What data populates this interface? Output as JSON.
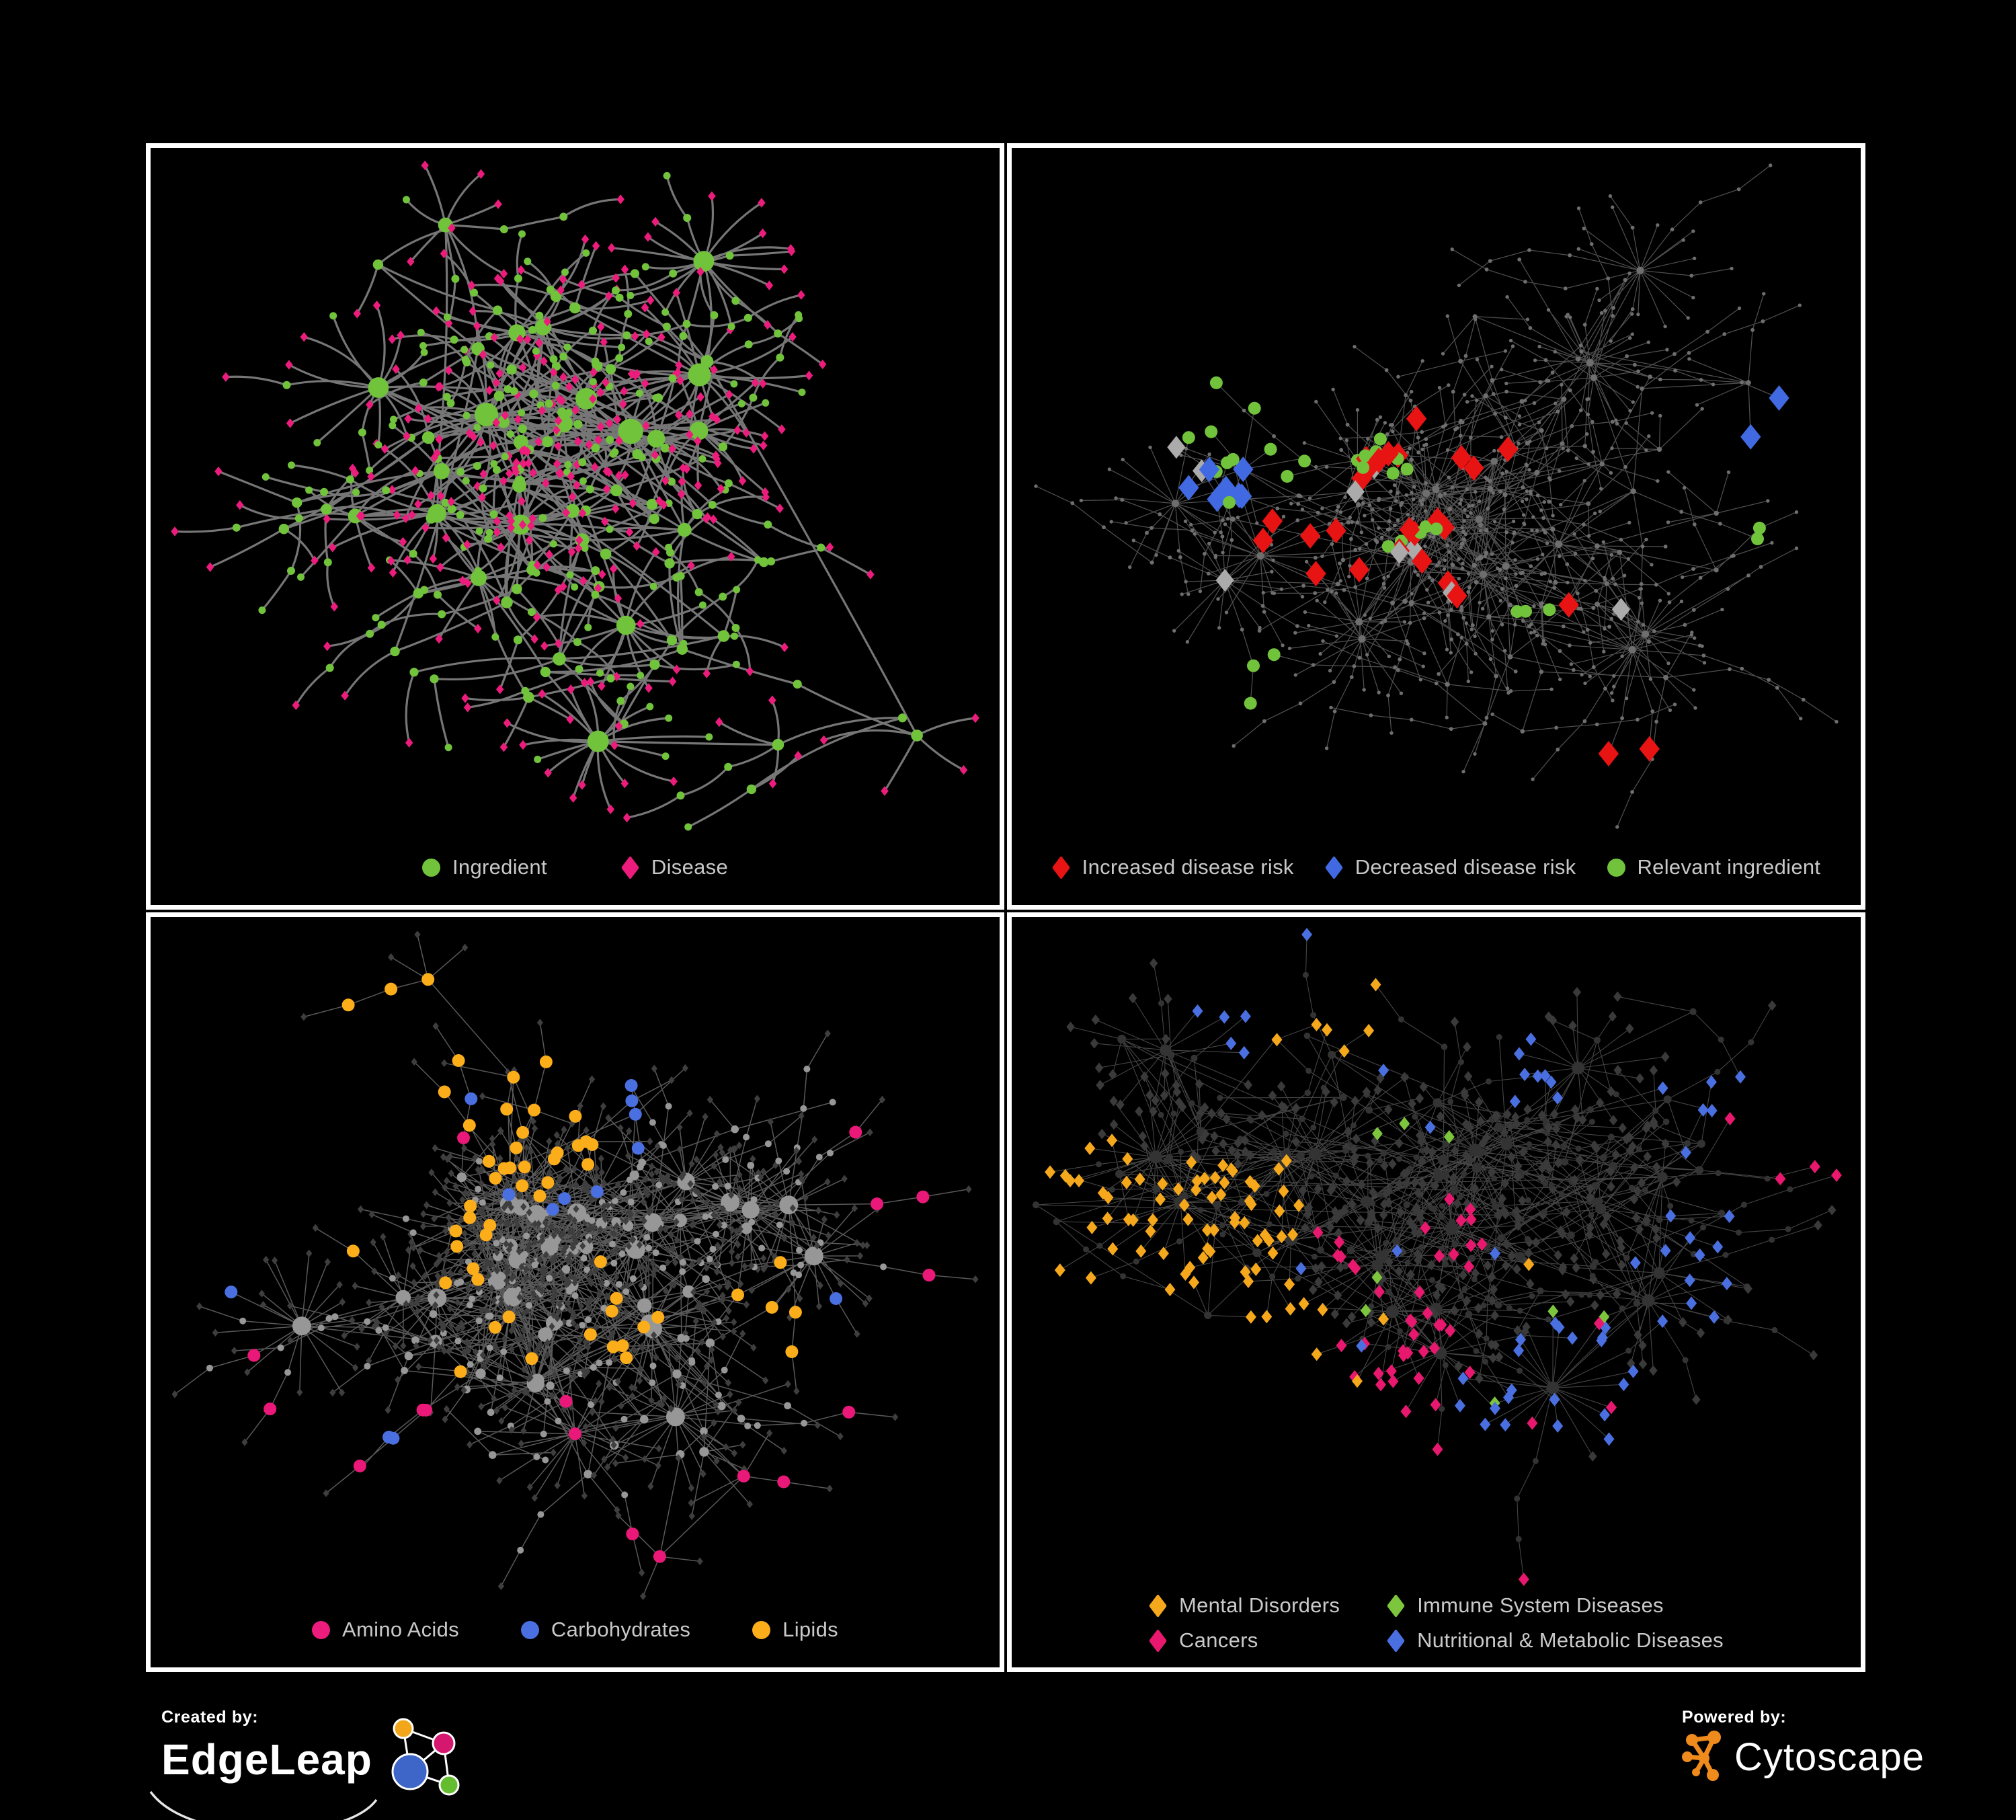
{
  "figure": {
    "background": "#000000",
    "panel_border": "#FFFFFF",
    "legend_text_color": "#C9C9C9"
  },
  "panels": [
    {
      "id": "ingredient-disease",
      "legend_gap": "lg",
      "legend": [
        {
          "shape": "circle",
          "color": "#72C33C",
          "label": "Ingredient"
        },
        {
          "shape": "diamond",
          "color": "#EC1C7D",
          "label": "Disease"
        }
      ],
      "network": {
        "seed": 7,
        "kind": "bipartite",
        "gen": {
          "internal": 95,
          "cross": 0.1,
          "hubP": 0.18,
          "hubMin": 8,
          "hubMax": 20,
          "leafMax": 5,
          "leafDist": 46,
          "chainP": 0.12,
          "chainExt": 0.35,
          "step": [
            55,
            115
          ],
          "areaH": 1010
        },
        "style": {
          "edge": "#7C7C7C",
          "edgeW": 3.2,
          "edgeO": 0.95,
          "curved": true,
          "green": "#72C33C",
          "pink": "#EC1C7D",
          "pinkP": 0.74,
          "leafSize": 7.2,
          "leafGreenR": 5.5,
          "rBase": 5.5,
          "rDeg": 0.55,
          "rMax": 19
        }
      }
    },
    {
      "id": "disease-risk",
      "legend_gap": "sm",
      "legend": [
        {
          "shape": "diamond",
          "color": "#E81313",
          "label": "Increased disease risk"
        },
        {
          "shape": "diamond",
          "color": "#4169E1",
          "label": "Decreased disease risk"
        },
        {
          "shape": "circle",
          "color": "#72C33C",
          "label": "Relevant ingredient"
        }
      ],
      "network": {
        "seed": 13,
        "kind": "highlight",
        "gen": {
          "internal": 115,
          "cross": 0.15,
          "hubP": 0.15,
          "hubMin": 8,
          "hubMax": 22,
          "leafMax": 5,
          "leafDist": 42,
          "chainP": 0.3,
          "chainExt": 0.5,
          "step": [
            50,
            115
          ],
          "areaH": 1010
        },
        "style": {
          "edge": "#585858",
          "edgeW": 1.25,
          "edgeO": 0.9,
          "curved": false,
          "dot": "#6E6E6E",
          "dotR": 2.7,
          "dotDeg": 0.2,
          "dotMax": 5.5
        },
        "overlays": [
          {
            "shape": "diamond",
            "color": "#E81313",
            "size": 19,
            "target": "any",
            "specs": [
              {
                "c": 6,
                "f": [
                  0.42,
                  0.42
                ],
                "s": 0.05
              },
              {
                "c": 6,
                "f": [
                  0.48,
                  0.5
                ],
                "s": 0.04
              },
              {
                "c": 4,
                "f": [
                  0.38,
                  0.56
                ],
                "s": 0.04
              },
              {
                "c": 3,
                "f": [
                  0.56,
                  0.41
                ],
                "s": 0.03
              },
              {
                "c": 2,
                "f": [
                  0.52,
                  0.58
                ],
                "s": 0.02
              },
              {
                "c": 2,
                "f": [
                  0.72,
                  0.81
                ],
                "s": 0.02
              },
              {
                "c": 2,
                "f": [
                  0.3,
                  0.5
                ],
                "s": 0.03
              },
              {
                "c": 1,
                "f": [
                  0.47,
                  0.35
                ],
                "s": 0.01
              },
              {
                "c": 1,
                "f": [
                  0.65,
                  0.62
                ],
                "s": 0.01
              }
            ]
          },
          {
            "shape": "diamond",
            "color": "#4169E1",
            "size": 19,
            "target": "any",
            "specs": [
              {
                "c": 5,
                "f": [
                  0.24,
                  0.45
                ],
                "s": 0.035
              },
              {
                "c": 2,
                "f": [
                  0.88,
                  0.36
                ],
                "s": 0.012
              },
              {
                "c": 2,
                "f": [
                  0.28,
                  0.44
                ],
                "s": 0.02
              }
            ]
          },
          {
            "shape": "diamond",
            "color": "#ABABAB",
            "size": 17,
            "target": "any",
            "specs": [
              {
                "c": 2,
                "f": [
                  0.21,
                  0.4
                ],
                "s": 0.02
              },
              {
                "c": 2,
                "f": [
                  0.41,
                  0.45
                ],
                "s": 0.03
              },
              {
                "c": 2,
                "f": [
                  0.46,
                  0.53
                ],
                "s": 0.02
              },
              {
                "c": 1,
                "f": [
                  0.26,
                  0.55
                ],
                "s": 0.01
              },
              {
                "c": 1,
                "f": [
                  0.53,
                  0.58
                ],
                "s": 0.012
              },
              {
                "c": 1,
                "f": [
                  0.72,
                  0.6
                ],
                "s": 0.012
              }
            ]
          },
          {
            "shape": "circle",
            "color": "#72C33C",
            "size": 9.5,
            "target": "any",
            "specs": [
              {
                "c": 9,
                "f": [
                  0.3,
                  0.42
                ],
                "s": 0.06
              },
              {
                "c": 8,
                "f": [
                  0.44,
                  0.42
                ],
                "s": 0.05
              },
              {
                "c": 5,
                "f": [
                  0.47,
                  0.52
                ],
                "s": 0.04
              },
              {
                "c": 3,
                "f": [
                  0.62,
                  0.61
                ],
                "s": 0.03
              },
              {
                "c": 2,
                "f": [
                  0.86,
                  0.5
                ],
                "s": 0.03
              },
              {
                "c": 3,
                "f": [
                  0.27,
                  0.7
                ],
                "s": 0.05
              },
              {
                "c": 2,
                "f": [
                  0.2,
                  0.3
                ],
                "s": 0.03
              }
            ]
          }
        ]
      }
    },
    {
      "id": "nutrient-categories",
      "legend_gap": "md",
      "legend": [
        {
          "shape": "circle",
          "color": "#EC1C7D",
          "label": "Amino Acids"
        },
        {
          "shape": "circle",
          "color": "#4A6FE0",
          "label": "Carbohydrates"
        },
        {
          "shape": "circle",
          "color": "#FBAD1A",
          "label": "Lipids"
        }
      ],
      "network": {
        "seed": 23,
        "kind": "circles",
        "gen": {
          "internal": 115,
          "cross": 0.2,
          "hubP": 0.2,
          "hubMin": 10,
          "hubMax": 24,
          "leafMax": 6,
          "leafDist": 40,
          "chainP": 0.18,
          "chainExt": 0.4,
          "step": [
            50,
            110
          ],
          "areaH": 1010
        },
        "style": {
          "edge": "#6F6F6F",
          "edgeW": 1.5,
          "edgeO": 0.8,
          "curved": false,
          "gray": "#979797",
          "rBase": 4.5,
          "rDeg": 0.45,
          "rMax": 14,
          "leafD": "#3E3E3E",
          "leafSize": 5.8
        },
        "overlays": [
          {
            "shape": "circle",
            "color": "#FBAD1A",
            "size": 9.5,
            "target": "internal",
            "specs": [
              {
                "c": 20,
                "f": [
                  0.46,
                  0.3
                ],
                "s": 0.06
              },
              {
                "c": 8,
                "f": [
                  0.37,
                  0.43
                ],
                "s": 0.05
              },
              {
                "c": 6,
                "f": [
                  0.55,
                  0.56
                ],
                "s": 0.025
              },
              {
                "c": 5,
                "f": [
                  0.3,
                  0.12
                ],
                "s": 0.06
              },
              {
                "c": 4,
                "f": [
                  0.72,
                  0.52
                ],
                "s": 0.05
              },
              {
                "c": 12,
                "f": [
                  0.45,
                  0.45
                ],
                "s": 0.3
              }
            ]
          },
          {
            "shape": "circle",
            "color": "#4A6FE0",
            "size": 9.5,
            "target": "internal",
            "specs": [
              {
                "c": 6,
                "f": [
                  0.5,
                  0.26
                ],
                "s": 0.04
              },
              {
                "c": 3,
                "f": [
                  0.47,
                  0.33
                ],
                "s": 0.03
              },
              {
                "c": 1,
                "f": [
                  0.83,
                  0.52
                ],
                "s": 0.012
              },
              {
                "c": 1,
                "f": [
                  0.12,
                  0.42
                ],
                "s": 0.012
              },
              {
                "c": 2,
                "f": [
                  0.4,
                  0.6
                ],
                "s": 0.2
              }
            ]
          },
          {
            "shape": "circle",
            "color": "#EA1878",
            "size": 9.5,
            "target": "internal",
            "specs": [
              {
                "c": 3,
                "f": [
                  0.9,
                  0.33
                ],
                "s": 0.05
              },
              {
                "c": 2,
                "f": [
                  0.47,
                  0.67
                ],
                "s": 0.03
              },
              {
                "c": 3,
                "f": [
                  0.25,
                  0.78
                ],
                "s": 0.06
              },
              {
                "c": 2,
                "f": [
                  0.72,
                  0.78
                ],
                "s": 0.04
              },
              {
                "c": 2,
                "f": [
                  0.95,
                  0.62
                ],
                "s": 0.03
              },
              {
                "c": 2,
                "f": [
                  0.12,
                  0.6
                ],
                "s": 0.03
              },
              {
                "c": 2,
                "f": [
                  0.55,
                  0.88
                ],
                "s": 0.04
              },
              {
                "c": 1,
                "f": [
                  0.42,
                  0.04
                ],
                "s": 0.01
              }
            ]
          }
        ]
      }
    },
    {
      "id": "disease-categories",
      "legend_columns": 2,
      "legend": [
        {
          "shape": "diamond",
          "color": "#F5A81C",
          "label": "Mental Disorders"
        },
        {
          "shape": "diamond",
          "color": "#7CC53C",
          "label": "Immune System Diseases"
        },
        {
          "shape": "diamond",
          "color": "#E8186E",
          "label": "Cancers"
        },
        {
          "shape": "diamond",
          "color": "#4A6FE0",
          "label": "Nutritional & Metabolic Diseases"
        }
      ],
      "network": {
        "seed": 41,
        "kind": "diamonds",
        "gen": {
          "internal": 130,
          "cross": 0.22,
          "hubP": 0.15,
          "hubMin": 10,
          "hubMax": 26,
          "leafMax": 5,
          "leafDist": 38,
          "chainP": 0.18,
          "chainExt": 0.4,
          "step": [
            48,
            105
          ],
          "areaH": 985
        },
        "style": {
          "edge": "#565656",
          "edgeW": 1.1,
          "edgeO": 0.8,
          "curved": false,
          "nodeC": "#333333",
          "rBase": 4.2,
          "rDeg": 0.3,
          "rMax": 9.5,
          "leafD": "#3A3A3A",
          "leafSize": 7.8
        },
        "overlays": [
          {
            "shape": "diamond",
            "color": "#F5A81C",
            "size": 10,
            "target": "leaf",
            "specs": [
              {
                "c": 40,
                "f": [
                  0.2,
                  0.44
                ],
                "s": 0.07
              },
              {
                "c": 20,
                "f": [
                  0.15,
                  0.52
                ],
                "s": 0.05
              },
              {
                "c": 10,
                "f": [
                  0.3,
                  0.38
                ],
                "s": 0.04
              },
              {
                "c": 6,
                "f": [
                  0.37,
                  0.12
                ],
                "s": 0.04
              },
              {
                "c": 8,
                "f": [
                  0.4,
                  0.55
                ],
                "s": 0.25
              }
            ]
          },
          {
            "shape": "diamond",
            "color": "#E8186E",
            "size": 10,
            "target": "leaf",
            "specs": [
              {
                "c": 22,
                "f": [
                  0.47,
                  0.57
                ],
                "s": 0.06
              },
              {
                "c": 10,
                "f": [
                  0.52,
                  0.42
                ],
                "s": 0.05
              },
              {
                "c": 6,
                "f": [
                  0.4,
                  0.45
                ],
                "s": 0.03
              },
              {
                "c": 4,
                "f": [
                  0.93,
                  0.27
                ],
                "s": 0.025
              },
              {
                "c": 3,
                "f": [
                  0.25,
                  0.83
                ],
                "s": 0.03
              },
              {
                "c": 5,
                "f": [
                  0.55,
                  0.7
                ],
                "s": 0.2
              }
            ]
          },
          {
            "shape": "diamond",
            "color": "#4A6FE0",
            "size": 10,
            "target": "leaf",
            "specs": [
              {
                "c": 16,
                "f": [
                  0.66,
                  0.62
                ],
                "s": 0.05
              },
              {
                "c": 10,
                "f": [
                  0.78,
                  0.45
                ],
                "s": 0.05
              },
              {
                "c": 8,
                "f": [
                  0.6,
                  0.2
                ],
                "s": 0.05
              },
              {
                "c": 6,
                "f": [
                  0.3,
                  0.08
                ],
                "s": 0.05
              },
              {
                "c": 6,
                "f": [
                  0.85,
                  0.3
                ],
                "s": 0.04
              },
              {
                "c": 5,
                "f": [
                  0.4,
                  0.75
                ],
                "s": 0.06
              },
              {
                "c": 8,
                "f": [
                  0.55,
                  0.4
                ],
                "s": 0.25
              }
            ]
          },
          {
            "shape": "diamond",
            "color": "#7CC53C",
            "size": 10,
            "target": "leaf",
            "specs": [
              {
                "c": 2,
                "f": [
                  0.46,
                  0.3
                ],
                "s": 0.02
              },
              {
                "c": 2,
                "f": [
                  0.44,
                  0.48
                ],
                "s": 0.03
              },
              {
                "c": 2,
                "f": [
                  0.68,
                  0.55
                ],
                "s": 0.02
              },
              {
                "c": 1,
                "f": [
                  0.33,
                  0.95
                ],
                "s": 0.01
              },
              {
                "c": 1,
                "f": [
                  0.52,
                  0.28
                ],
                "s": 0.01
              }
            ]
          }
        ]
      }
    }
  ],
  "footer": {
    "created_by": {
      "label": "Created by:",
      "brand": "EdgeLeap"
    },
    "powered_by": {
      "label": "Powered by:",
      "brand": "Cytoscape"
    },
    "cytoscape_orange": "#EF8A1C",
    "edgeleap_node_colors": [
      "#F2A71B",
      "#D6176F",
      "#3E66C9",
      "#64BC2F"
    ]
  }
}
